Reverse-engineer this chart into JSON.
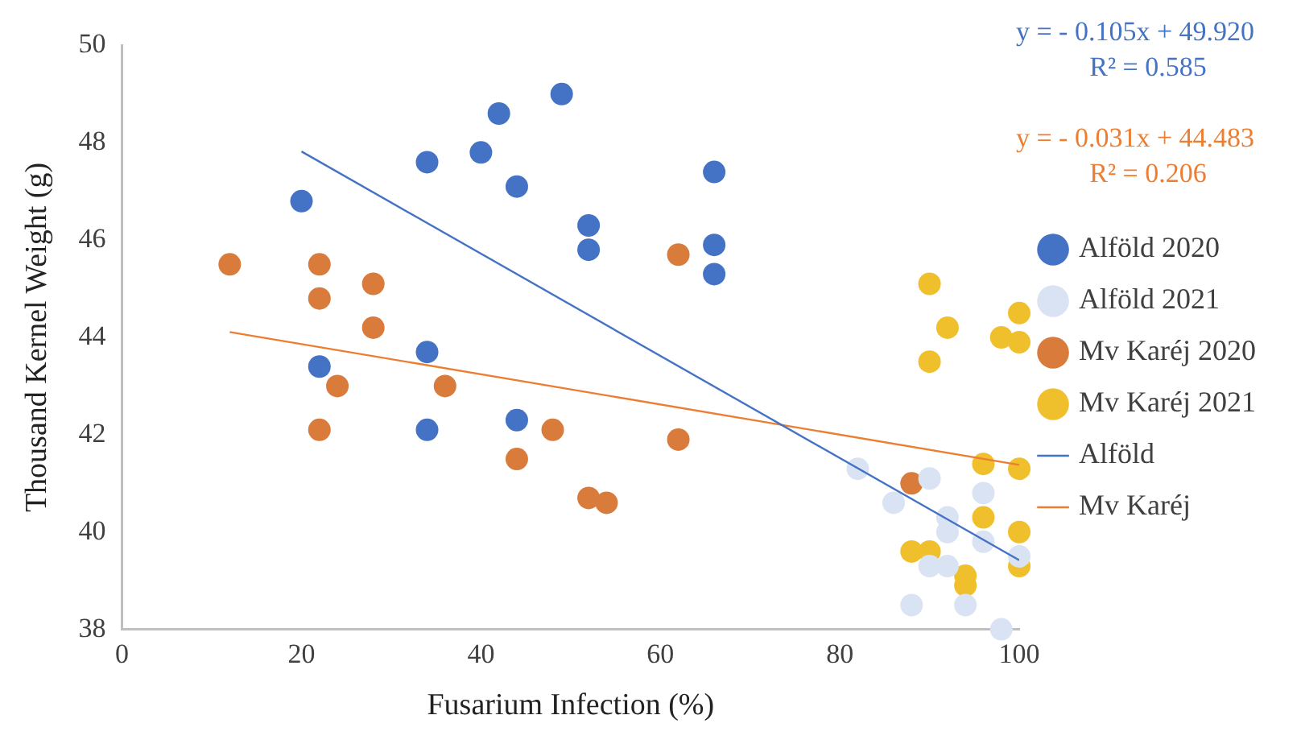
{
  "chart_data": {
    "type": "scatter",
    "xlabel": "Fusarium Infection (%)",
    "ylabel": "Thousand Kernel Weight (g)",
    "xlim": [
      0,
      100
    ],
    "xticks": [
      0,
      20,
      40,
      60,
      80,
      100
    ],
    "ylim": [
      38,
      50
    ],
    "yticks": [
      38,
      40,
      42,
      44,
      46,
      48,
      50
    ],
    "grid": false,
    "legend": "right",
    "marker": "circle",
    "annotations": [
      "y = - 0.105x + 49.920",
      "R² = 0.585",
      "y = - 0.031x + 44.483",
      "R² = 0.206"
    ],
    "series": [
      {
        "name": "Alföld 2020",
        "color": "#4472c4",
        "x": [
          20,
          34,
          42,
          40,
          44,
          49,
          22,
          34,
          34,
          44,
          66,
          52,
          52,
          66,
          66
        ],
        "values": [
          46.8,
          47.6,
          48.6,
          47.8,
          47.1,
          49.0,
          43.4,
          43.7,
          42.1,
          42.3,
          47.4,
          46.3,
          45.8,
          45.9,
          45.3
        ]
      },
      {
        "name": "Alföld 2021",
        "color": "#dae3f3",
        "x": [
          82,
          90,
          86,
          96,
          92,
          92,
          96,
          100,
          90,
          92,
          88,
          94,
          98
        ],
        "values": [
          41.3,
          41.1,
          40.6,
          40.8,
          40.3,
          40.0,
          39.8,
          39.5,
          39.3,
          39.3,
          38.5,
          38.5,
          38.0
        ]
      },
      {
        "name": "Mv Karéj 2020",
        "color": "#d87b3b",
        "x": [
          12,
          22,
          22,
          28,
          28,
          24,
          36,
          22,
          44,
          48,
          62,
          62,
          52,
          54,
          88
        ],
        "values": [
          45.5,
          45.5,
          44.8,
          45.1,
          44.2,
          43.0,
          43.0,
          42.1,
          41.5,
          42.1,
          45.7,
          41.9,
          40.7,
          40.6,
          41.0
        ]
      },
      {
        "name": "Mv Karéj 2021",
        "color": "#f0c02c",
        "x": [
          90,
          92,
          100,
          98,
          100,
          90,
          96,
          100,
          96,
          100,
          88,
          90,
          94,
          94,
          100
        ],
        "values": [
          45.1,
          44.2,
          44.5,
          44.0,
          43.9,
          43.5,
          41.4,
          41.3,
          40.3,
          40.0,
          39.6,
          39.6,
          39.1,
          38.9,
          39.3
        ]
      },
      {
        "name": "Alföld",
        "type": "line",
        "color": "#4472c4",
        "marker": "none",
        "x": [
          20,
          100
        ],
        "values": [
          47.82,
          39.42
        ]
      },
      {
        "name": "Mv Karéj",
        "type": "line",
        "color": "#ed7d31",
        "marker": "none",
        "x": [
          12,
          100
        ],
        "values": [
          44.11,
          41.38
        ]
      }
    ]
  }
}
